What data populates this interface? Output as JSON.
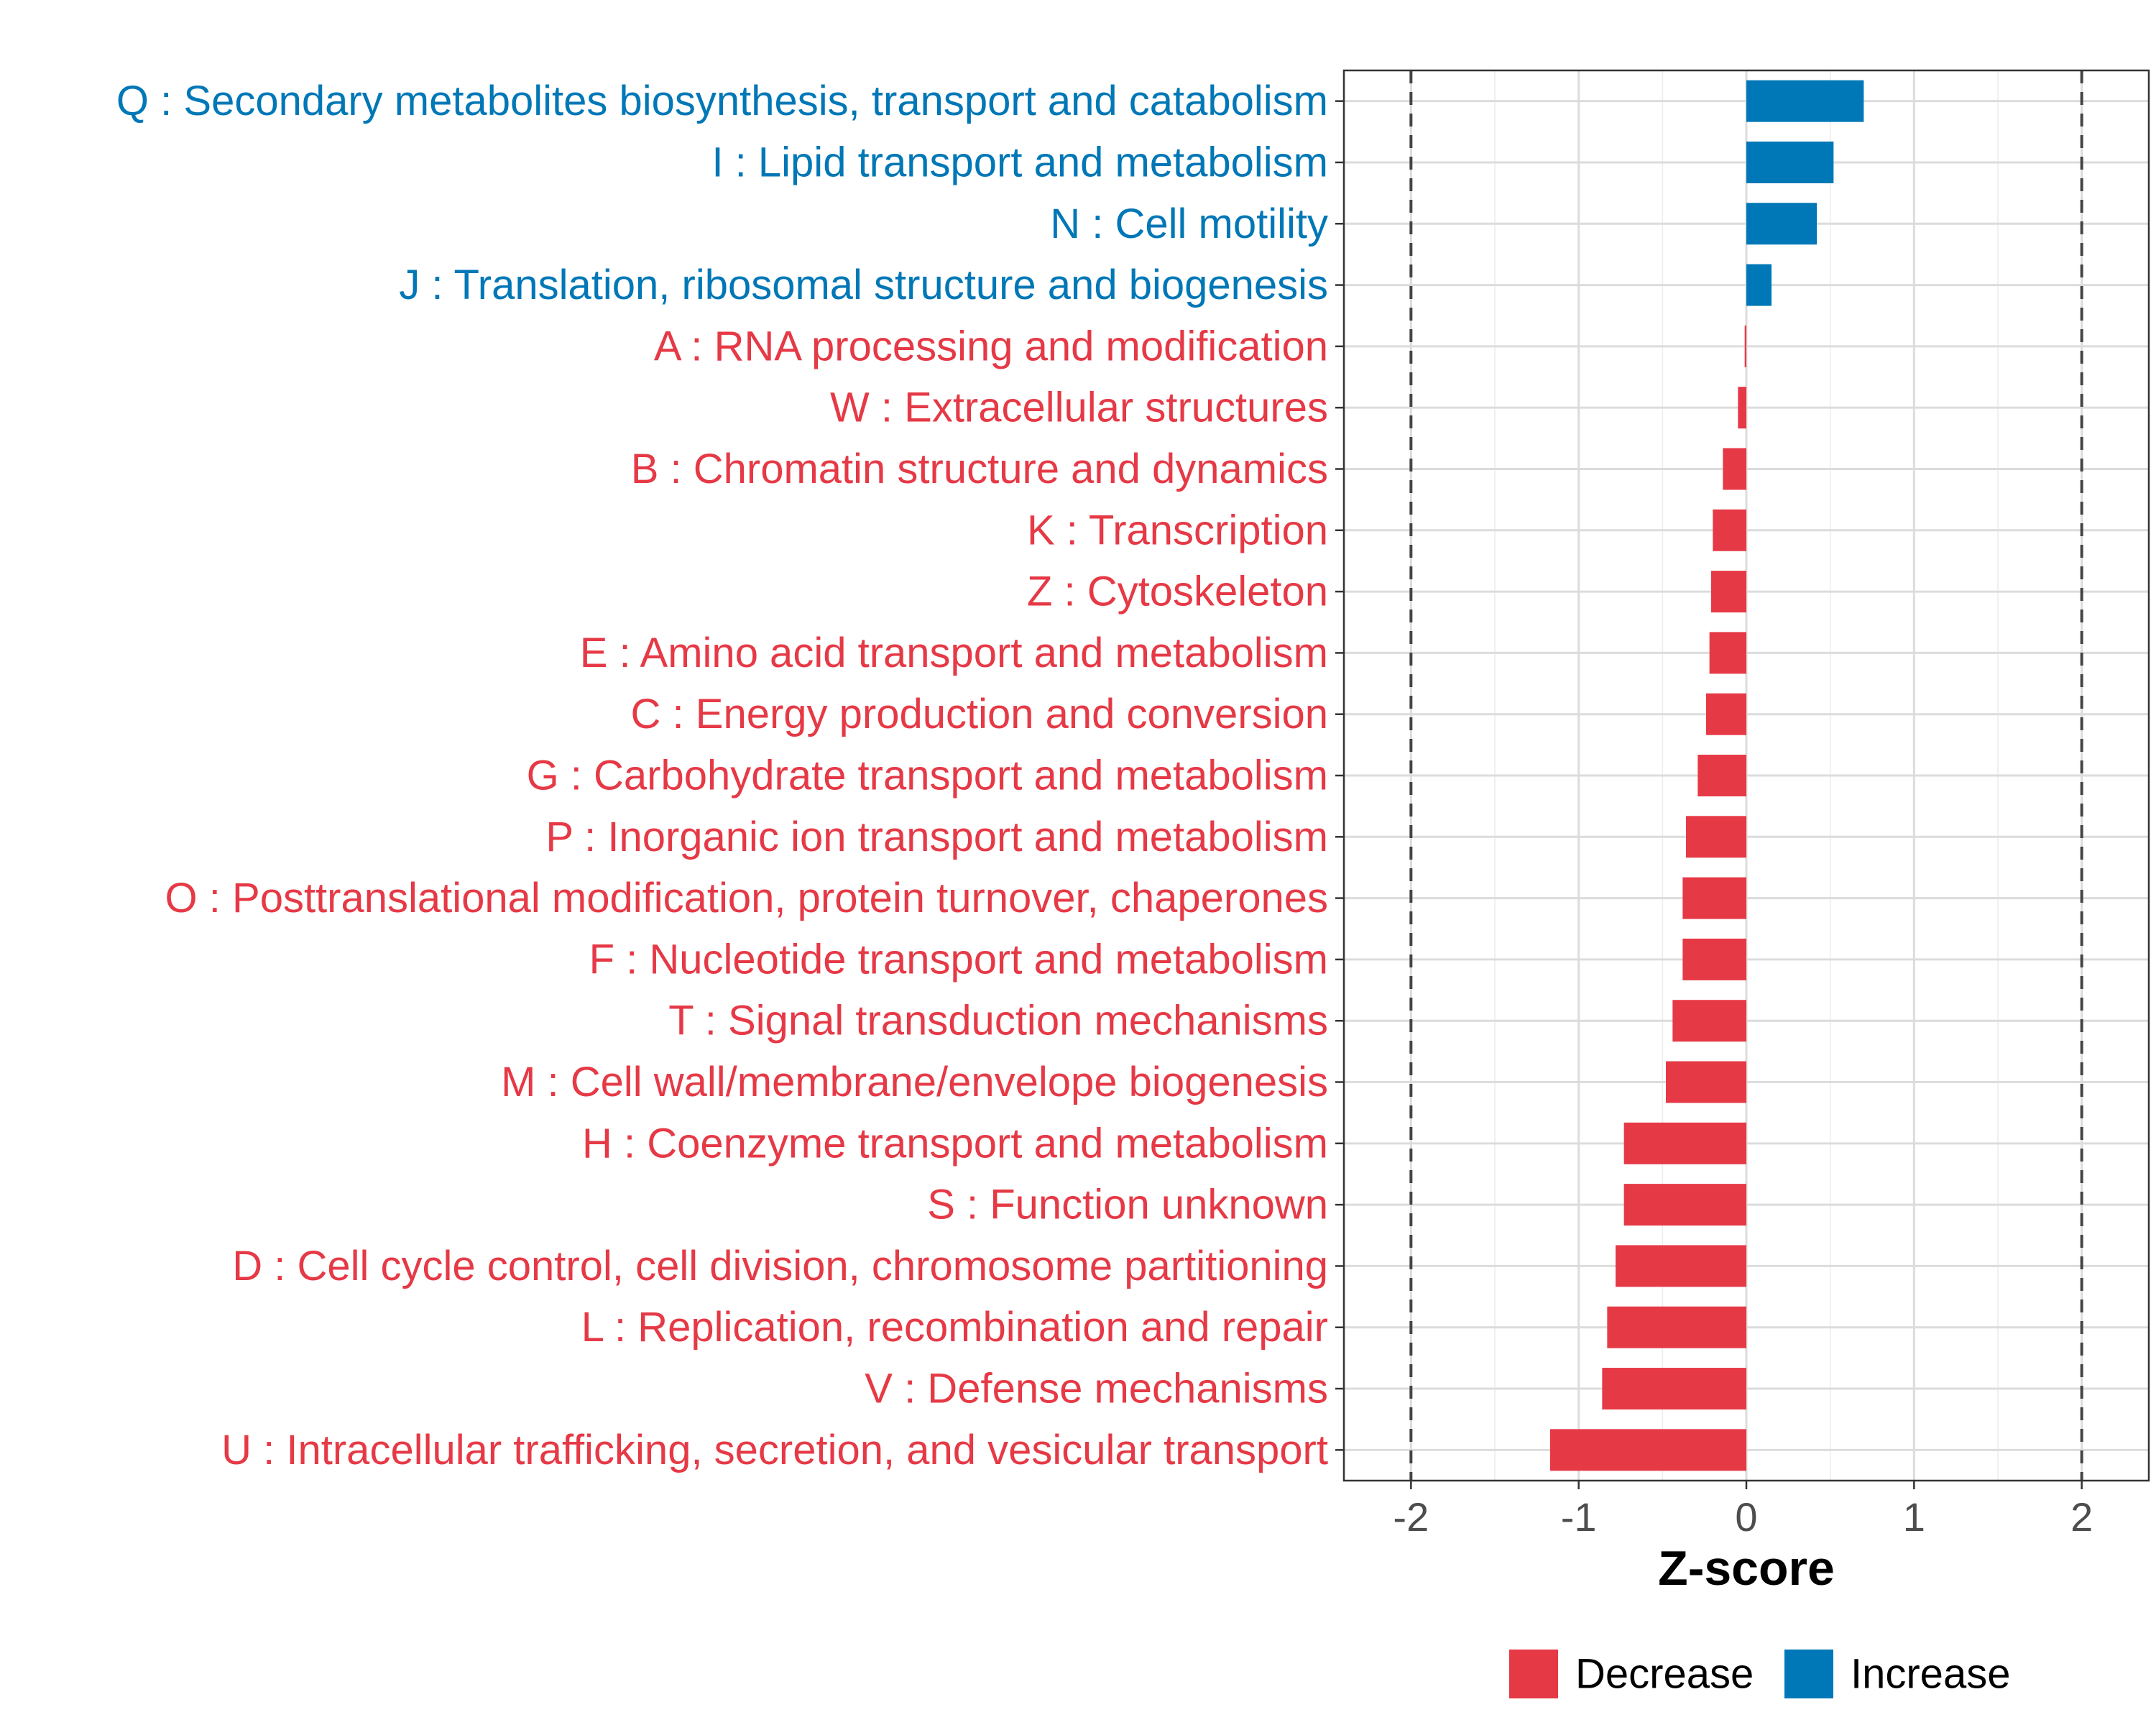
{
  "chart_data": {
    "type": "bar",
    "orientation": "horizontal",
    "xlabel": "Z-score",
    "ylabel": "",
    "xlim": [
      -2.4,
      2.4
    ],
    "xticks": [
      -2,
      -1,
      0,
      1,
      2
    ],
    "xtick_labels": [
      "-2",
      "-1",
      "0",
      "1",
      "2"
    ],
    "reference_lines": [
      -2,
      2
    ],
    "grid": true,
    "legend_position": "bottom",
    "legend": [
      {
        "name": "Decrease",
        "color": "#E63946"
      },
      {
        "name": "Increase",
        "color": "#0077B6"
      }
    ],
    "categories": [
      "Q : Secondary metabolites biosynthesis, transport and catabolism",
      "I : Lipid transport and metabolism",
      "N : Cell motility",
      "J : Translation, ribosomal structure and biogenesis",
      "A : RNA processing and modification",
      "W : Extracellular structures",
      "B : Chromatin structure and dynamics",
      "K : Transcription",
      "Z : Cytoskeleton",
      "E : Amino acid transport and metabolism",
      "C : Energy production and conversion",
      "G : Carbohydrate transport and metabolism",
      "P : Inorganic ion transport and metabolism",
      "O : Posttranslational modification, protein turnover, chaperones",
      "F : Nucleotide transport and metabolism",
      "T : Signal transduction mechanisms",
      "M : Cell wall/membrane/envelope biogenesis",
      "H : Coenzyme transport and metabolism",
      "S : Function unknown",
      "D : Cell cycle control, cell division, chromosome partitioning",
      "L : Replication, recombination and repair",
      "V : Defense mechanisms",
      "U : Intracellular trafficking, secretion, and vesicular transport"
    ],
    "values": [
      0.7,
      0.52,
      0.42,
      0.15,
      -0.01,
      -0.05,
      -0.14,
      -0.2,
      -0.21,
      -0.22,
      -0.24,
      -0.29,
      -0.36,
      -0.38,
      -0.38,
      -0.44,
      -0.48,
      -0.73,
      -0.73,
      -0.78,
      -0.83,
      -0.86,
      -1.17
    ],
    "groups": [
      "Increase",
      "Increase",
      "Increase",
      "Increase",
      "Decrease",
      "Decrease",
      "Decrease",
      "Decrease",
      "Decrease",
      "Decrease",
      "Decrease",
      "Decrease",
      "Decrease",
      "Decrease",
      "Decrease",
      "Decrease",
      "Decrease",
      "Decrease",
      "Decrease",
      "Decrease",
      "Decrease",
      "Decrease",
      "Decrease"
    ]
  }
}
